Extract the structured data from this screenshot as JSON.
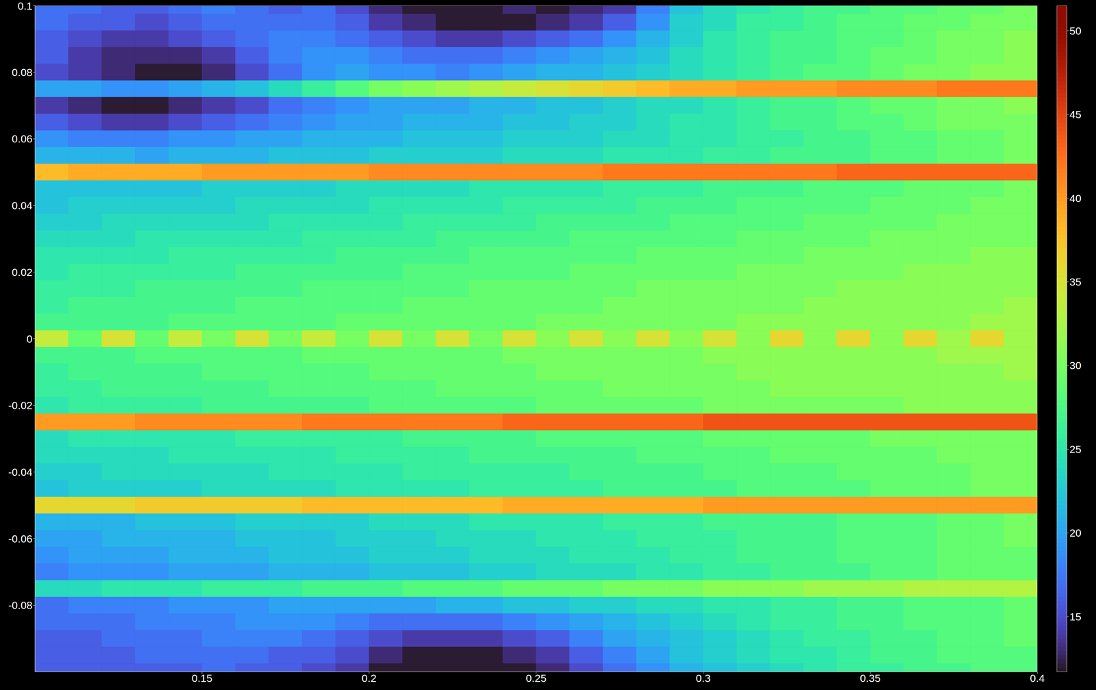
{
  "chart_data": {
    "type": "heatmap",
    "x": [
      0.105,
      0.115,
      0.125,
      0.135,
      0.145,
      0.155,
      0.165,
      0.175,
      0.185,
      0.195,
      0.205,
      0.215,
      0.225,
      0.235,
      0.245,
      0.255,
      0.265,
      0.275,
      0.285,
      0.295,
      0.305,
      0.315,
      0.325,
      0.335,
      0.345,
      0.355,
      0.365,
      0.375,
      0.385,
      0.395
    ],
    "y": [
      0.1,
      0.095,
      0.09,
      0.085,
      0.08,
      0.075,
      0.07,
      0.065,
      0.06,
      0.055,
      0.05,
      0.045,
      0.04,
      0.035,
      0.03,
      0.025,
      0.02,
      0.015,
      0.01,
      0.005,
      0,
      -0.005,
      -0.01,
      -0.015,
      -0.02,
      -0.025,
      -0.03,
      -0.035,
      -0.04,
      -0.045,
      -0.05,
      -0.055,
      -0.06,
      -0.065,
      -0.07,
      -0.075,
      -0.08,
      -0.085,
      -0.09,
      -0.095,
      -0.1
    ],
    "z": [
      [
        17,
        17,
        16,
        16,
        17,
        18,
        17,
        16,
        17,
        15,
        13,
        12,
        12,
        12,
        13,
        12,
        13,
        14,
        18,
        22,
        24,
        25,
        26,
        27,
        27,
        28,
        28,
        29,
        29,
        30
      ],
      [
        17,
        16,
        16,
        15,
        16,
        17,
        17,
        17,
        17,
        16,
        14,
        13,
        12,
        12,
        12,
        13,
        14,
        16,
        19,
        23,
        24,
        26,
        26,
        27,
        28,
        28,
        29,
        29,
        30,
        30
      ],
      [
        16,
        15,
        14,
        14,
        15,
        16,
        17,
        18,
        18,
        17,
        16,
        15,
        14,
        14,
        15,
        16,
        17,
        19,
        21,
        23,
        25,
        26,
        27,
        27,
        28,
        28,
        29,
        30,
        30,
        31
      ],
      [
        16,
        14,
        13,
        13,
        13,
        14,
        16,
        18,
        19,
        19,
        18,
        17,
        17,
        17,
        18,
        19,
        20,
        21,
        22,
        24,
        25,
        26,
        27,
        27,
        28,
        29,
        29,
        30,
        30,
        31
      ],
      [
        15,
        14,
        13,
        12,
        12,
        13,
        15,
        17,
        19,
        20,
        19,
        19,
        18,
        19,
        20,
        21,
        21,
        22,
        23,
        24,
        25,
        26,
        27,
        28,
        28,
        29,
        30,
        30,
        31,
        31
      ],
      [
        20,
        20,
        19,
        19,
        20,
        21,
        22,
        24,
        26,
        28,
        30,
        31,
        32,
        33,
        34,
        35,
        36,
        37,
        38,
        39,
        39,
        40,
        40,
        40,
        41,
        41,
        41,
        42,
        42,
        42
      ],
      [
        14,
        13,
        12,
        12,
        13,
        14,
        15,
        17,
        18,
        19,
        20,
        20,
        20,
        21,
        21,
        22,
        22,
        23,
        24,
        24,
        25,
        26,
        27,
        27,
        28,
        29,
        29,
        30,
        30,
        31
      ],
      [
        16,
        15,
        14,
        14,
        15,
        16,
        17,
        18,
        19,
        20,
        20,
        21,
        21,
        21,
        22,
        22,
        23,
        23,
        24,
        25,
        25,
        26,
        27,
        27,
        28,
        28,
        29,
        30,
        30,
        30
      ],
      [
        19,
        18,
        18,
        18,
        19,
        19,
        20,
        20,
        21,
        21,
        21,
        22,
        22,
        22,
        23,
        23,
        23,
        24,
        24,
        25,
        25,
        26,
        26,
        27,
        27,
        28,
        28,
        29,
        29,
        30
      ],
      [
        21,
        21,
        21,
        20,
        21,
        21,
        21,
        22,
        22,
        22,
        23,
        23,
        23,
        23,
        24,
        24,
        24,
        25,
        25,
        25,
        26,
        26,
        27,
        27,
        27,
        28,
        28,
        29,
        29,
        30
      ],
      [
        38,
        39,
        39,
        39,
        39,
        40,
        40,
        40,
        40,
        40,
        41,
        41,
        41,
        41,
        41,
        41,
        41,
        42,
        42,
        42,
        42,
        42,
        42,
        42,
        43,
        43,
        43,
        43,
        43,
        43
      ],
      [
        22,
        22,
        22,
        22,
        22,
        23,
        23,
        23,
        23,
        24,
        24,
        24,
        24,
        25,
        25,
        25,
        25,
        26,
        26,
        26,
        27,
        27,
        27,
        28,
        28,
        28,
        29,
        29,
        29,
        30
      ],
      [
        22,
        23,
        23,
        23,
        23,
        23,
        24,
        24,
        24,
        24,
        25,
        25,
        25,
        25,
        26,
        26,
        26,
        26,
        27,
        27,
        27,
        28,
        28,
        28,
        28,
        29,
        29,
        29,
        30,
        30
      ],
      [
        23,
        23,
        24,
        24,
        24,
        24,
        24,
        25,
        25,
        25,
        25,
        26,
        26,
        26,
        26,
        27,
        27,
        27,
        27,
        28,
        28,
        28,
        28,
        29,
        29,
        29,
        29,
        30,
        30,
        30
      ],
      [
        24,
        24,
        24,
        25,
        25,
        25,
        25,
        25,
        26,
        26,
        26,
        26,
        27,
        27,
        27,
        27,
        28,
        28,
        28,
        28,
        28,
        29,
        29,
        29,
        29,
        30,
        30,
        30,
        30,
        30
      ],
      [
        25,
        25,
        25,
        25,
        26,
        26,
        26,
        26,
        26,
        27,
        27,
        27,
        27,
        28,
        28,
        28,
        28,
        28,
        29,
        29,
        29,
        29,
        29,
        30,
        30,
        30,
        30,
        30,
        31,
        31
      ],
      [
        25,
        26,
        26,
        26,
        26,
        26,
        27,
        27,
        27,
        27,
        27,
        28,
        28,
        28,
        28,
        28,
        29,
        29,
        29,
        29,
        29,
        30,
        30,
        30,
        30,
        30,
        31,
        31,
        31,
        31
      ],
      [
        26,
        26,
        26,
        27,
        27,
        27,
        27,
        27,
        28,
        28,
        28,
        28,
        28,
        29,
        29,
        29,
        29,
        29,
        30,
        30,
        30,
        30,
        30,
        30,
        31,
        31,
        31,
        31,
        31,
        31
      ],
      [
        26,
        27,
        27,
        27,
        27,
        27,
        28,
        28,
        28,
        28,
        28,
        29,
        29,
        29,
        29,
        29,
        29,
        30,
        30,
        30,
        30,
        30,
        30,
        31,
        31,
        31,
        31,
        31,
        31,
        32
      ],
      [
        27,
        27,
        27,
        27,
        28,
        28,
        28,
        28,
        28,
        29,
        29,
        29,
        29,
        29,
        29,
        30,
        30,
        30,
        30,
        30,
        30,
        31,
        31,
        31,
        31,
        31,
        31,
        31,
        32,
        32
      ],
      [
        34,
        29,
        35,
        29,
        34,
        30,
        35,
        30,
        34,
        30,
        35,
        30,
        35,
        30,
        35,
        31,
        35,
        31,
        35,
        31,
        35,
        31,
        36,
        31,
        36,
        31,
        36,
        32,
        36,
        32
      ],
      [
        27,
        27,
        27,
        28,
        28,
        28,
        28,
        28,
        29,
        29,
        29,
        29,
        29,
        29,
        30,
        30,
        30,
        30,
        30,
        30,
        31,
        31,
        31,
        31,
        31,
        31,
        31,
        32,
        32,
        32
      ],
      [
        26,
        27,
        27,
        27,
        27,
        28,
        28,
        28,
        28,
        28,
        29,
        29,
        29,
        29,
        29,
        30,
        30,
        30,
        30,
        30,
        30,
        31,
        31,
        31,
        31,
        31,
        31,
        31,
        31,
        32
      ],
      [
        26,
        26,
        27,
        27,
        27,
        27,
        27,
        28,
        28,
        28,
        28,
        28,
        29,
        29,
        29,
        29,
        29,
        30,
        30,
        30,
        30,
        30,
        31,
        31,
        31,
        31,
        31,
        31,
        31,
        31
      ],
      [
        25,
        26,
        26,
        26,
        26,
        27,
        27,
        27,
        27,
        27,
        28,
        28,
        28,
        28,
        28,
        29,
        29,
        29,
        29,
        29,
        30,
        30,
        30,
        30,
        30,
        30,
        31,
        31,
        31,
        31
      ],
      [
        40,
        40,
        40,
        41,
        41,
        41,
        41,
        41,
        42,
        42,
        42,
        42,
        42,
        42,
        43,
        43,
        43,
        43,
        43,
        43,
        44,
        44,
        44,
        44,
        44,
        44,
        44,
        44,
        44,
        44
      ],
      [
        24,
        25,
        25,
        25,
        25,
        25,
        26,
        26,
        26,
        26,
        26,
        27,
        27,
        27,
        27,
        28,
        28,
        28,
        28,
        28,
        29,
        29,
        29,
        29,
        29,
        30,
        30,
        30,
        30,
        30
      ],
      [
        24,
        24,
        24,
        24,
        25,
        25,
        25,
        25,
        25,
        26,
        26,
        26,
        26,
        27,
        27,
        27,
        27,
        27,
        28,
        28,
        28,
        28,
        29,
        29,
        29,
        29,
        29,
        30,
        30,
        30
      ],
      [
        23,
        23,
        24,
        24,
        24,
        24,
        24,
        25,
        25,
        25,
        25,
        26,
        26,
        26,
        26,
        26,
        27,
        27,
        27,
        27,
        28,
        28,
        28,
        28,
        29,
        29,
        29,
        29,
        30,
        30
      ],
      [
        22,
        23,
        23,
        23,
        23,
        24,
        24,
        24,
        24,
        25,
        25,
        25,
        25,
        26,
        26,
        26,
        26,
        27,
        27,
        27,
        27,
        28,
        28,
        28,
        28,
        29,
        29,
        29,
        30,
        30
      ],
      [
        36,
        36,
        36,
        37,
        37,
        37,
        37,
        37,
        38,
        38,
        38,
        38,
        38,
        38,
        39,
        39,
        39,
        39,
        39,
        39,
        40,
        40,
        40,
        40,
        40,
        40,
        40,
        40,
        40,
        40
      ],
      [
        21,
        21,
        21,
        22,
        22,
        22,
        23,
        23,
        23,
        23,
        24,
        24,
        24,
        25,
        25,
        25,
        25,
        26,
        26,
        26,
        27,
        27,
        27,
        27,
        28,
        28,
        28,
        29,
        29,
        30
      ],
      [
        20,
        20,
        21,
        21,
        21,
        21,
        22,
        22,
        22,
        23,
        23,
        23,
        24,
        24,
        24,
        25,
        25,
        25,
        26,
        26,
        26,
        27,
        27,
        27,
        28,
        28,
        28,
        29,
        29,
        30
      ],
      [
        19,
        20,
        20,
        20,
        21,
        21,
        21,
        22,
        22,
        22,
        23,
        23,
        23,
        24,
        24,
        24,
        25,
        25,
        25,
        26,
        26,
        27,
        27,
        27,
        28,
        28,
        28,
        29,
        29,
        29
      ],
      [
        18,
        19,
        19,
        19,
        20,
        20,
        20,
        21,
        21,
        21,
        22,
        22,
        22,
        23,
        23,
        24,
        24,
        24,
        25,
        25,
        26,
        26,
        27,
        27,
        27,
        28,
        28,
        29,
        29,
        29
      ],
      [
        24,
        24,
        25,
        25,
        25,
        26,
        26,
        26,
        27,
        27,
        27,
        28,
        28,
        28,
        29,
        29,
        29,
        30,
        30,
        30,
        31,
        31,
        31,
        32,
        32,
        32,
        33,
        33,
        33,
        33
      ],
      [
        17,
        18,
        18,
        18,
        19,
        19,
        19,
        20,
        20,
        20,
        20,
        20,
        21,
        21,
        22,
        22,
        23,
        23,
        24,
        24,
        25,
        25,
        26,
        26,
        27,
        27,
        28,
        28,
        28,
        29
      ],
      [
        17,
        17,
        17,
        18,
        18,
        18,
        19,
        19,
        19,
        18,
        17,
        17,
        17,
        17,
        18,
        19,
        20,
        21,
        22,
        23,
        24,
        25,
        26,
        26,
        27,
        27,
        28,
        28,
        28,
        29
      ],
      [
        16,
        16,
        17,
        17,
        17,
        18,
        18,
        18,
        17,
        16,
        15,
        14,
        14,
        14,
        15,
        16,
        18,
        20,
        21,
        22,
        23,
        24,
        25,
        26,
        26,
        27,
        27,
        28,
        28,
        29
      ],
      [
        16,
        16,
        16,
        17,
        17,
        17,
        17,
        16,
        16,
        15,
        13,
        12,
        12,
        12,
        13,
        14,
        16,
        18,
        20,
        22,
        23,
        24,
        25,
        25,
        26,
        27,
        27,
        28,
        28,
        28
      ],
      [
        16,
        16,
        16,
        16,
        16,
        17,
        16,
        16,
        15,
        14,
        12,
        12,
        12,
        12,
        12,
        13,
        15,
        17,
        19,
        21,
        22,
        23,
        24,
        25,
        26,
        26,
        27,
        27,
        28,
        28
      ]
    ],
    "xlim": [
      0.1,
      0.4
    ],
    "ylim": [
      -0.1,
      0.1
    ],
    "xticks": [
      0.15,
      0.2,
      0.25,
      0.3,
      0.35,
      0.4
    ],
    "yticks": [
      -0.08,
      -0.06,
      -0.04,
      -0.02,
      0,
      0.02,
      0.04,
      0.06,
      0.08,
      0.1
    ],
    "colorbar": {
      "range": [
        11.7,
        51.5
      ],
      "ticks": [
        15,
        20,
        25,
        30,
        35,
        40,
        45,
        50
      ]
    }
  }
}
